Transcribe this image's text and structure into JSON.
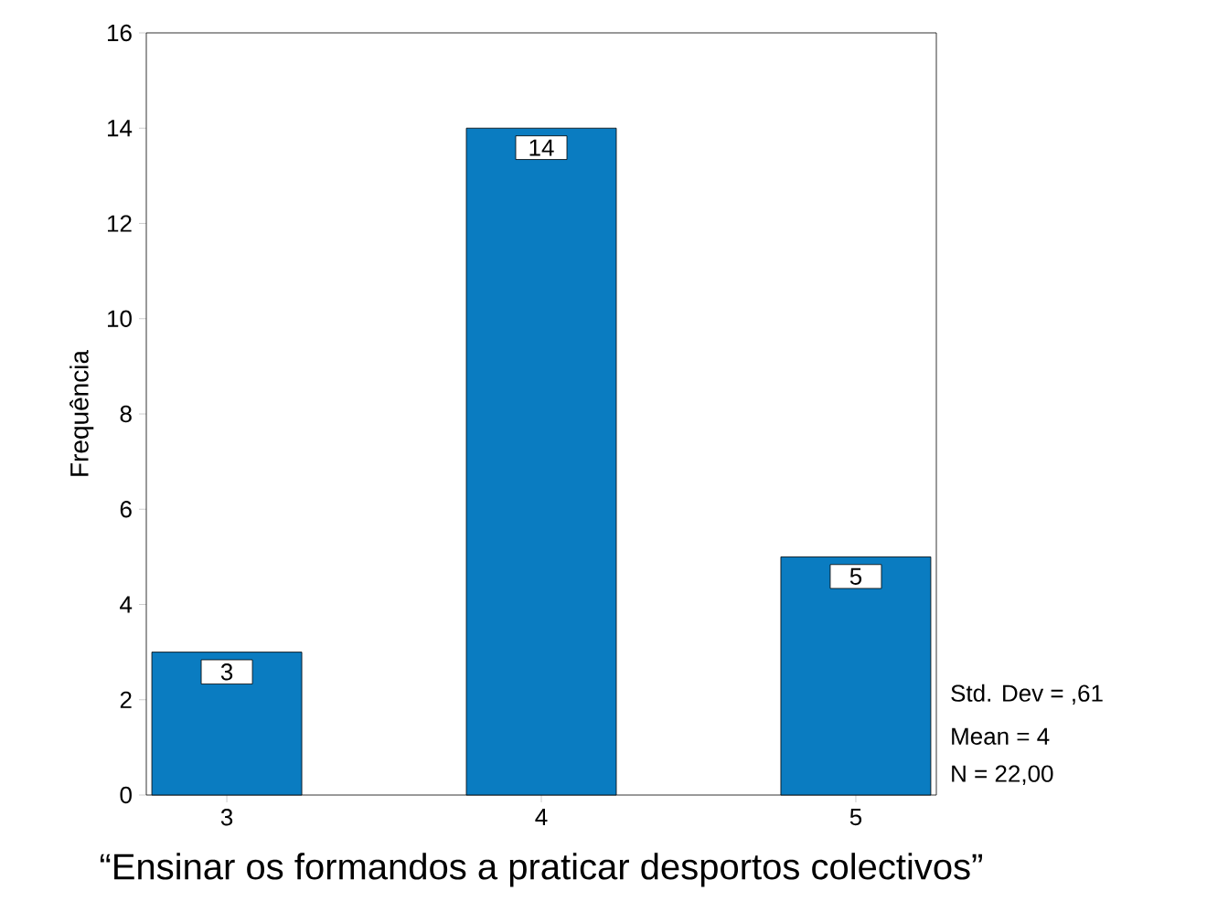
{
  "chart_data": {
    "type": "bar",
    "xlabel": "“Ensinar os formandos a praticar desportos colectivos”",
    "ylabel": "Frequência",
    "categories": [
      "3",
      "4",
      "5"
    ],
    "values": [
      3,
      14,
      5
    ],
    "color": "#0a7cc1",
    "ylim": [
      0,
      16
    ],
    "yticks": [
      0,
      2,
      4,
      6,
      8,
      10,
      12,
      14,
      16
    ],
    "grid": false,
    "data_labels": true,
    "annotations": [
      "Std. Dev = ,61",
      "Mean = 4",
      "N = 22,00"
    ]
  }
}
